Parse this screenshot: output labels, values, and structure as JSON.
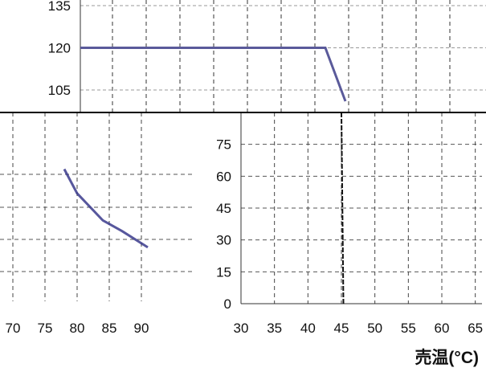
{
  "chart_data": [
    {
      "type": "line",
      "title": "",
      "xlabel": "",
      "ylabel": "",
      "x_ticks": [
        70,
        75,
        80,
        85,
        90
      ],
      "y_ticks": [],
      "xlim": [
        68,
        98
      ],
      "ylim": [
        0,
        140
      ],
      "grid": true,
      "series": [
        {
          "values": [],
          "color": "#3a3a8c"
        }
      ],
      "stray_curve": {
        "x": [
          78,
          80,
          84,
          87,
          91
        ],
        "y": [
          98,
          80,
          60,
          52,
          40
        ]
      }
    },
    {
      "type": "line",
      "title": "",
      "xlabel": "売温(°C)",
      "ylabel": "",
      "x_ticks": [
        30,
        35,
        40,
        45,
        50,
        55,
        60,
        65
      ],
      "y_ticks": [
        0,
        15,
        30,
        45,
        60,
        75
      ],
      "xlim": [
        30,
        66
      ],
      "ylim": [
        0,
        90
      ],
      "grid": true,
      "series": [
        {
          "x": [
            45,
            45.3
          ],
          "y": [
            90,
            0
          ],
          "color": "#111111"
        }
      ]
    },
    {
      "type": "line",
      "title": "",
      "xlabel": "",
      "ylabel": "",
      "x_ticks": [],
      "y_ticks": [
        105,
        120,
        135
      ],
      "ylim": [
        97,
        137
      ],
      "grid": true,
      "series": [
        {
          "x": [
            0,
            44,
            46
          ],
          "y": [
            120,
            120,
            101
          ],
          "color": "#5a5a9a"
        }
      ]
    }
  ]
}
